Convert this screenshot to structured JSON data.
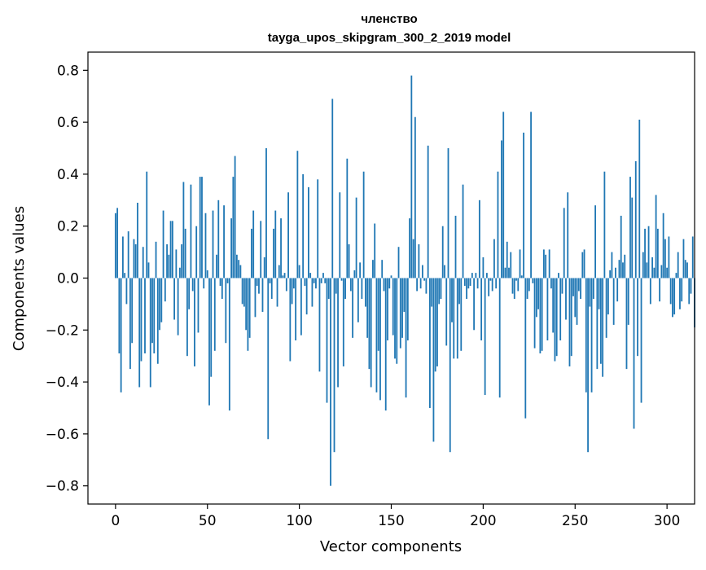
{
  "chart_data": {
    "type": "bar",
    "title_line1": "членство",
    "title_line2": "tayga_upos_skipgram_300_2_2019 model",
    "xlabel": "Vector components",
    "ylabel": "Components values",
    "xlim": [
      -15,
      315
    ],
    "ylim": [
      -0.87,
      0.87
    ],
    "x_ticks": [
      0,
      50,
      100,
      150,
      200,
      250,
      300
    ],
    "x_tick_labels": [
      "0",
      "50",
      "100",
      "150",
      "200",
      "250",
      "300"
    ],
    "y_ticks": [
      0.8,
      0.6,
      0.4,
      0.2,
      0.0,
      -0.2,
      -0.4,
      -0.6,
      -0.8
    ],
    "y_tick_labels": [
      "0.8",
      "0.6",
      "0.4",
      "0.2",
      "0.0",
      "−0.2",
      "−0.4",
      "−0.6",
      "−0.8"
    ],
    "bar_color": "#1f77b4",
    "grid": false,
    "values": [
      0.25,
      0.27,
      -0.29,
      -0.44,
      0.16,
      0.02,
      -0.1,
      0.18,
      -0.35,
      -0.25,
      0.15,
      0.13,
      0.29,
      -0.42,
      -0.32,
      0.12,
      -0.29,
      0.41,
      0.06,
      -0.42,
      -0.25,
      -0.29,
      0.14,
      -0.33,
      -0.2,
      -0.17,
      0.26,
      -0.09,
      0.13,
      0.09,
      0.22,
      0.22,
      -0.16,
      0.11,
      -0.22,
      0.04,
      0.13,
      0.37,
      0.19,
      -0.3,
      -0.12,
      0.36,
      -0.05,
      -0.34,
      0.2,
      -0.21,
      0.39,
      0.39,
      -0.04,
      0.25,
      0.03,
      -0.49,
      -0.38,
      0.26,
      -0.28,
      0.09,
      0.3,
      -0.03,
      -0.08,
      0.28,
      -0.25,
      -0.02,
      -0.51,
      0.23,
      0.39,
      0.47,
      0.09,
      0.07,
      0.05,
      -0.1,
      -0.11,
      -0.2,
      -0.28,
      -0.23,
      0.19,
      0.26,
      -0.15,
      -0.03,
      -0.06,
      0.22,
      -0.13,
      0.08,
      0.5,
      -0.62,
      -0.02,
      -0.08,
      0.19,
      0.26,
      -0.11,
      0.05,
      0.23,
      0.01,
      0.02,
      -0.05,
      0.33,
      -0.32,
      -0.1,
      -0.04,
      -0.24,
      0.49,
      0.05,
      -0.22,
      0.4,
      -0.03,
      -0.14,
      0.35,
      0.02,
      -0.11,
      -0.02,
      -0.04,
      0.38,
      -0.36,
      -0.02,
      0.02,
      -0.02,
      -0.48,
      -0.08,
      -0.8,
      0.69,
      -0.67,
      -0.06,
      -0.42,
      0.33,
      -0.01,
      -0.34,
      -0.08,
      0.46,
      0.13,
      -0.05,
      -0.23,
      0.03,
      0.31,
      -0.17,
      0.06,
      -0.08,
      0.41,
      -0.11,
      -0.23,
      -0.35,
      -0.42,
      0.07,
      0.21,
      -0.44,
      -0.28,
      -0.47,
      0.07,
      -0.05,
      -0.51,
      -0.24,
      -0.04,
      0.01,
      -0.22,
      -0.31,
      -0.33,
      0.12,
      -0.27,
      -0.23,
      -0.13,
      -0.46,
      -0.24,
      0.23,
      0.78,
      0.15,
      0.62,
      -0.05,
      0.13,
      -0.04,
      0.05,
      -0.01,
      -0.06,
      0.51,
      -0.5,
      -0.11,
      -0.63,
      -0.36,
      -0.34,
      -0.1,
      -0.08,
      0.2,
      0.05,
      -0.26,
      0.5,
      -0.67,
      -0.17,
      -0.31,
      0.24,
      -0.31,
      -0.1,
      -0.28,
      0.36,
      -0.03,
      -0.08,
      -0.04,
      -0.03,
      0.02,
      -0.2,
      0.02,
      -0.04,
      0.3,
      -0.24,
      0.08,
      -0.45,
      0.02,
      -0.07,
      -0.01,
      -0.05,
      0.15,
      -0.04,
      0.41,
      -0.46,
      0.53,
      0.64,
      0.04,
      0.14,
      0.04,
      0.1,
      -0.06,
      -0.08,
      -0.01,
      -0.05,
      0.11,
      0.01,
      0.56,
      -0.54,
      -0.08,
      -0.05,
      0.64,
      -0.02,
      -0.27,
      -0.15,
      -0.12,
      -0.29,
      -0.28,
      0.11,
      0.09,
      -0.24,
      0.11,
      -0.04,
      -0.21,
      -0.32,
      -0.3,
      0.02,
      -0.24,
      -0.06,
      0.27,
      -0.16,
      0.33,
      -0.34,
      -0.3,
      -0.07,
      -0.15,
      -0.18,
      -0.05,
      -0.08,
      0.1,
      0.11,
      -0.44,
      -0.67,
      -0.11,
      -0.44,
      -0.08,
      0.28,
      -0.35,
      -0.12,
      -0.33,
      -0.38,
      0.41,
      -0.23,
      -0.14,
      0.03,
      0.1,
      -0.18,
      0.04,
      -0.09,
      0.07,
      0.24,
      0.06,
      0.09,
      -0.35,
      -0.18,
      0.39,
      0.31,
      -0.58,
      0.45,
      -0.3,
      0.61,
      -0.48,
      0.1,
      0.19,
      0.06,
      0.2,
      -0.1,
      0.08,
      0.04,
      0.32,
      0.19,
      -0.09,
      0.05,
      0.25,
      0.15,
      0.04,
      0.16,
      -0.1,
      -0.15,
      -0.14,
      0.02,
      0.1,
      -0.12,
      -0.09,
      0.15,
      0.07,
      0.06,
      -0.1,
      -0.06,
      0.16,
      -0.19
    ]
  }
}
